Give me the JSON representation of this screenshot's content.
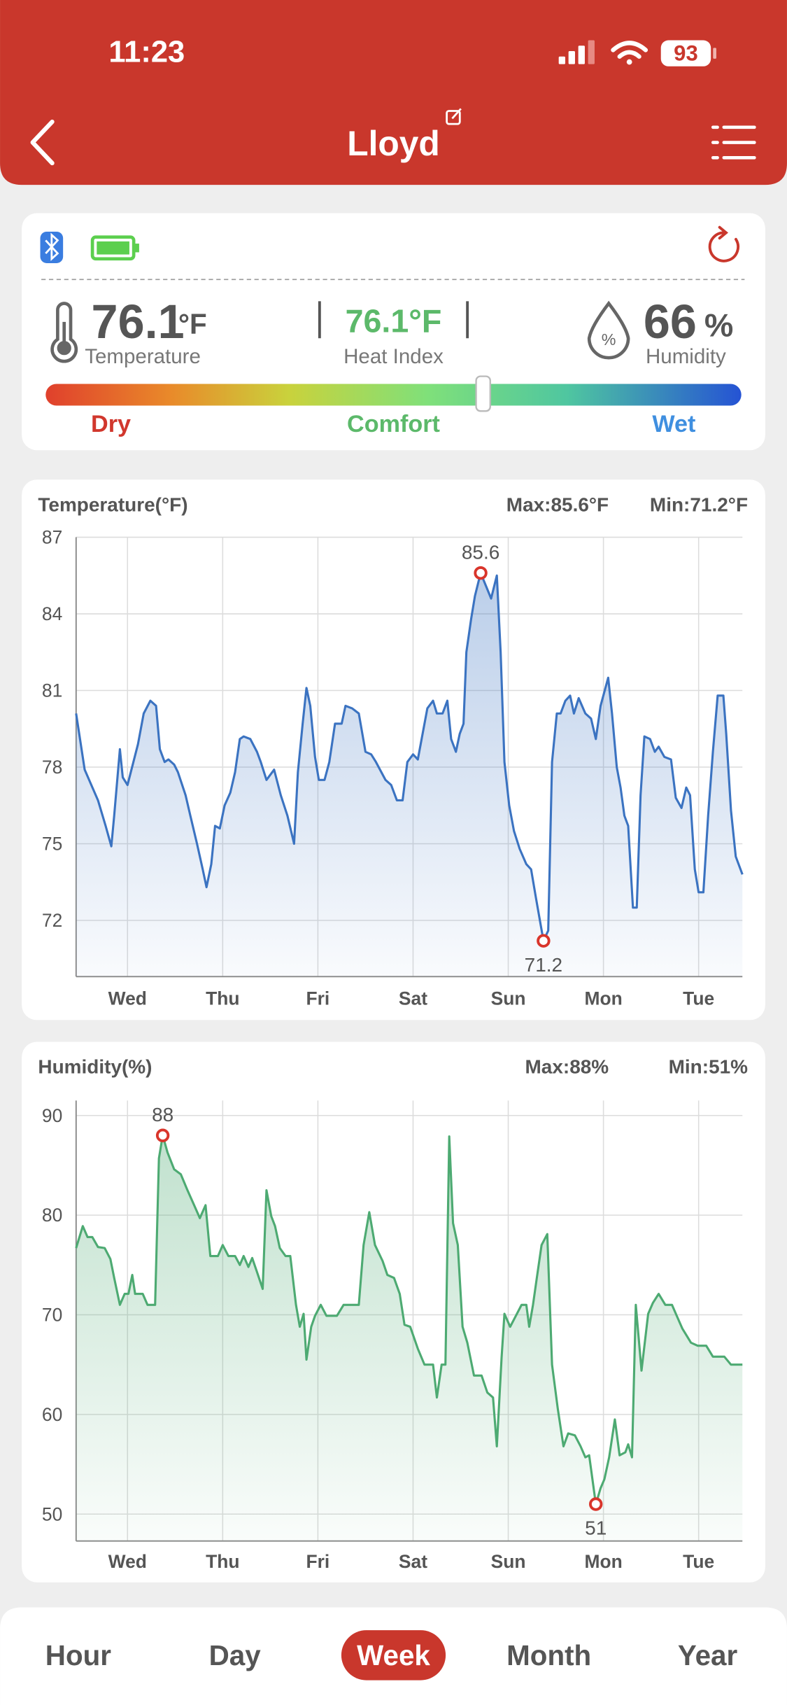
{
  "status_bar": {
    "time": "11:23",
    "battery": "93"
  },
  "header": {
    "title": "Lloyd"
  },
  "summary": {
    "temperature": {
      "value": 76.1,
      "unit": "°F",
      "label": "Temperature"
    },
    "heat_index": {
      "value": "76.1°F",
      "label": "Heat Index"
    },
    "humidity": {
      "value": 66,
      "unit": "%",
      "label": "Humidity",
      "icon": "%"
    },
    "scale_labels": [
      "Dry",
      "Comfort",
      "Wet"
    ]
  },
  "chart_data": [
    {
      "type": "line",
      "title": "Temperature(°F)",
      "max_text": "Max:85.6°F",
      "min_text": "Min:71.2°F",
      "color": "#3b73c1",
      "grid": true,
      "xlim": [
        0.46,
        7.46
      ],
      "xticks": [
        {
          "value": 1,
          "label": "Wed"
        },
        {
          "value": 2,
          "label": "Thu"
        },
        {
          "value": 3,
          "label": "Fri"
        },
        {
          "value": 4,
          "label": "Sat"
        },
        {
          "value": 5,
          "label": "Sun"
        },
        {
          "value": 6,
          "label": "Mon"
        },
        {
          "value": 7,
          "label": "Tue"
        }
      ],
      "ylim": [
        69.8,
        87
      ],
      "yticks": [
        72,
        75,
        78,
        81,
        84,
        87
      ],
      "x": [
        0.46,
        0.55,
        0.69,
        0.77,
        0.83,
        0.86,
        0.92,
        0.95,
        1.0,
        1.11,
        1.17,
        1.24,
        1.3,
        1.34,
        1.39,
        1.43,
        1.49,
        1.53,
        1.61,
        1.66,
        1.73,
        1.79,
        1.83,
        1.88,
        1.92,
        1.97,
        2.02,
        2.08,
        2.13,
        2.18,
        2.22,
        2.29,
        2.36,
        2.4,
        2.46,
        2.54,
        2.61,
        2.68,
        2.75,
        2.79,
        2.84,
        2.88,
        2.92,
        2.97,
        3.01,
        3.07,
        3.12,
        3.18,
        3.25,
        3.29,
        3.36,
        3.43,
        3.5,
        3.56,
        3.61,
        3.71,
        3.77,
        3.83,
        3.89,
        3.94,
        4.0,
        4.05,
        4.1,
        4.15,
        4.21,
        4.25,
        4.31,
        4.36,
        4.4,
        4.45,
        4.49,
        4.53,
        4.56,
        4.61,
        4.65,
        4.71,
        4.82,
        4.88,
        4.92,
        4.96,
        5.01,
        5.06,
        5.12,
        5.19,
        5.24,
        5.29,
        5.37,
        5.42,
        5.46,
        5.51,
        5.55,
        5.6,
        5.65,
        5.69,
        5.74,
        5.81,
        5.87,
        5.92,
        5.97,
        6.05,
        6.09,
        6.14,
        6.18,
        6.22,
        6.26,
        6.31,
        6.35,
        6.39,
        6.43,
        6.49,
        6.54,
        6.58,
        6.64,
        6.71,
        6.76,
        6.82,
        6.87,
        6.91,
        6.96,
        7.0,
        7.05,
        7.1,
        7.15,
        7.2,
        7.26,
        7.29,
        7.34,
        7.39,
        7.46
      ],
      "values": [
        80.1,
        77.9,
        76.7,
        75.7,
        74.9,
        76.1,
        78.7,
        77.6,
        77.3,
        78.9,
        80.1,
        80.6,
        80.4,
        78.7,
        78.2,
        78.3,
        78.1,
        77.8,
        76.9,
        76.1,
        75.0,
        74.0,
        73.3,
        74.2,
        75.7,
        75.6,
        76.5,
        77.0,
        77.8,
        79.1,
        79.2,
        79.1,
        78.6,
        78.2,
        77.5,
        77.9,
        76.9,
        76.1,
        75.0,
        77.8,
        79.7,
        81.1,
        80.4,
        78.4,
        77.5,
        77.5,
        78.2,
        79.7,
        79.7,
        80.4,
        80.3,
        80.1,
        78.6,
        78.5,
        78.2,
        77.5,
        77.3,
        76.7,
        76.7,
        78.2,
        78.5,
        78.3,
        79.3,
        80.3,
        80.6,
        80.1,
        80.1,
        80.6,
        79.1,
        78.6,
        79.3,
        79.7,
        82.5,
        83.8,
        84.7,
        85.6,
        84.6,
        85.5,
        82.5,
        78.2,
        76.5,
        75.5,
        74.8,
        74.2,
        74.0,
        72.9,
        71.2,
        71.6,
        78.2,
        80.1,
        80.1,
        80.6,
        80.8,
        80.1,
        80.7,
        80.1,
        79.9,
        79.1,
        80.4,
        81.5,
        80.1,
        78.0,
        77.2,
        76.1,
        75.7,
        72.5,
        72.5,
        76.9,
        79.2,
        79.1,
        78.6,
        78.8,
        78.4,
        78.3,
        76.8,
        76.4,
        77.2,
        76.9,
        74.0,
        73.1,
        73.1,
        76.1,
        78.6,
        80.8,
        80.8,
        79.3,
        76.3,
        74.5,
        73.8
      ],
      "annotations": [
        {
          "x": 4.71,
          "value": 85.6,
          "position": "above"
        },
        {
          "x": 5.37,
          "value": 71.2,
          "position": "below"
        }
      ]
    },
    {
      "type": "line",
      "title": "Humidity(%)",
      "max_text": "Max:88%",
      "min_text": "Min:51%",
      "color": "#4daa72",
      "grid": true,
      "xlim": [
        0.46,
        7.46
      ],
      "xticks": [
        {
          "value": 1,
          "label": "Wed"
        },
        {
          "value": 2,
          "label": "Thu"
        },
        {
          "value": 3,
          "label": "Fri"
        },
        {
          "value": 4,
          "label": "Sat"
        },
        {
          "value": 5,
          "label": "Sun"
        },
        {
          "value": 6,
          "label": "Mon"
        },
        {
          "value": 7,
          "label": "Tue"
        }
      ],
      "ylim": [
        47.3,
        91.5
      ],
      "yticks": [
        50,
        60,
        70,
        80,
        90
      ],
      "x": [
        0.46,
        0.53,
        0.58,
        0.63,
        0.69,
        0.76,
        0.82,
        0.86,
        0.92,
        0.97,
        1.01,
        1.05,
        1.08,
        1.16,
        1.21,
        1.29,
        1.33,
        1.37,
        1.42,
        1.49,
        1.56,
        1.63,
        1.7,
        1.76,
        1.82,
        1.87,
        1.95,
        2.0,
        2.06,
        2.13,
        2.18,
        2.22,
        2.27,
        2.31,
        2.36,
        2.42,
        2.46,
        2.51,
        2.55,
        2.6,
        2.66,
        2.71,
        2.77,
        2.81,
        2.85,
        2.88,
        2.93,
        2.97,
        3.03,
        3.09,
        3.2,
        3.27,
        3.43,
        3.48,
        3.54,
        3.6,
        3.68,
        3.73,
        3.8,
        3.86,
        3.91,
        3.97,
        4.05,
        4.12,
        4.21,
        4.25,
        4.3,
        4.34,
        4.38,
        4.42,
        4.47,
        4.52,
        4.57,
        4.64,
        4.72,
        4.78,
        4.84,
        4.88,
        4.93,
        4.96,
        5.02,
        5.08,
        5.14,
        5.19,
        5.22,
        5.26,
        5.3,
        5.35,
        5.41,
        5.46,
        5.52,
        5.58,
        5.63,
        5.7,
        5.76,
        5.81,
        5.85,
        5.92,
        5.97,
        6.01,
        6.06,
        6.12,
        6.17,
        6.23,
        6.26,
        6.3,
        6.34,
        6.4,
        6.47,
        6.52,
        6.58,
        6.65,
        6.72,
        6.77,
        6.83,
        6.92,
        6.99,
        7.08,
        7.15,
        7.27,
        7.34,
        7.46
      ],
      "values": [
        76.7,
        78.9,
        77.8,
        77.8,
        76.8,
        76.7,
        75.6,
        73.7,
        71.0,
        72.1,
        72.1,
        74.0,
        72.1,
        72.1,
        71.0,
        71.0,
        85.7,
        88,
        86.3,
        84.6,
        84.1,
        82.5,
        81.0,
        79.7,
        81.0,
        75.9,
        75.9,
        77.0,
        75.9,
        75.9,
        75.0,
        75.9,
        74.8,
        75.7,
        74.3,
        72.6,
        82.5,
        79.9,
        78.9,
        76.7,
        75.9,
        75.9,
        71.0,
        68.8,
        70.1,
        65.5,
        68.8,
        69.9,
        71.0,
        69.9,
        69.9,
        71.0,
        71.0,
        77.0,
        80.3,
        77.0,
        75.4,
        74.0,
        73.7,
        72.1,
        69.0,
        68.8,
        66.6,
        65.0,
        65.0,
        61.7,
        65.0,
        65.0,
        87.9,
        79.2,
        77.0,
        68.8,
        67.2,
        63.9,
        63.9,
        62.2,
        61.7,
        56.8,
        65.7,
        70.1,
        68.8,
        69.9,
        71.0,
        71.0,
        68.8,
        71.0,
        73.7,
        77.0,
        78.1,
        65.0,
        60.6,
        56.8,
        58.1,
        57.9,
        56.8,
        55.7,
        55.9,
        51,
        52.6,
        53.5,
        55.7,
        59.5,
        55.9,
        56.2,
        57.0,
        55.7,
        71.0,
        64.4,
        70.1,
        71.2,
        72.1,
        71.0,
        71.0,
        69.9,
        68.6,
        67.2,
        66.9,
        66.9,
        65.8,
        65.8,
        65.0,
        65.0
      ],
      "annotations": [
        {
          "x": 1.37,
          "value": 88,
          "position": "above"
        },
        {
          "x": 5.92,
          "value": 51,
          "position": "below"
        }
      ]
    }
  ],
  "tabs": [
    "Hour",
    "Day",
    "Week",
    "Month",
    "Year"
  ],
  "selected_tab": 2
}
